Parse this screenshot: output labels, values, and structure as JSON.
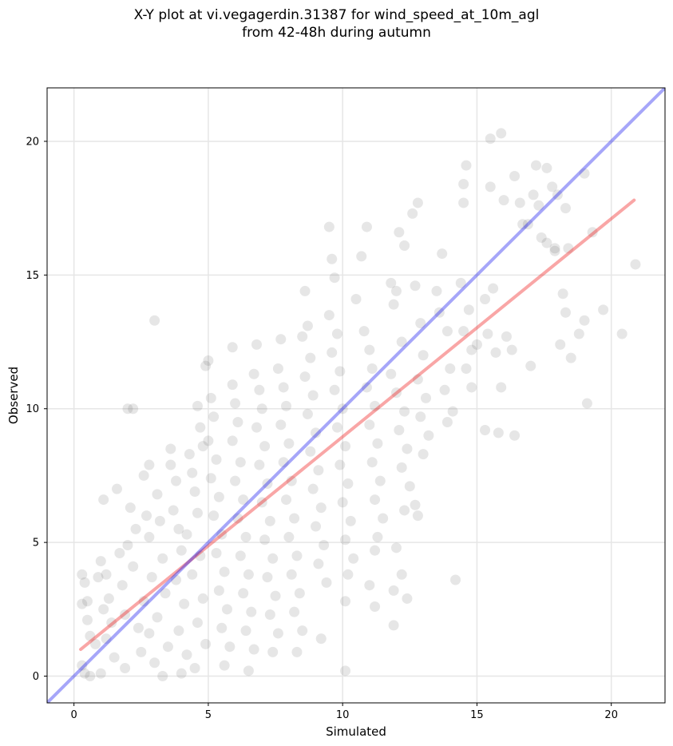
{
  "chart_data": {
    "type": "scatter",
    "title": "X-Y plot at vi.vegagerdin.31387 for wind_speed_at_10m_agl",
    "subtitle": "from 42-48h during autumn",
    "xlabel": "Simulated",
    "ylabel": "Observed",
    "xlim": [
      -1,
      22
    ],
    "ylim": [
      -1,
      22
    ],
    "xticks": [
      0,
      5,
      10,
      15,
      20
    ],
    "yticks": [
      0,
      5,
      10,
      15,
      20
    ],
    "grid": true,
    "point_color": "#555555",
    "point_alpha": 0.15,
    "identity_line": {
      "x": [
        -1,
        22
      ],
      "y": [
        -1,
        22
      ],
      "color": "#0000ee",
      "alpha": 0.35
    },
    "fit_line": {
      "x": [
        0.25,
        20.85
      ],
      "y": [
        1.0,
        17.8
      ],
      "color": "#ee0000",
      "alpha": 0.35
    },
    "series": [
      {
        "points": [
          [
            0.3,
            3.8
          ],
          [
            0.4,
            3.5
          ],
          [
            0.5,
            2.8
          ],
          [
            0.3,
            2.7
          ],
          [
            0.5,
            2.1
          ],
          [
            0.6,
            1.5
          ],
          [
            0.3,
            0.4
          ],
          [
            0.4,
            0.1
          ],
          [
            0.6,
            0.0
          ],
          [
            0.8,
            1.2
          ],
          [
            1.0,
            0.1
          ],
          [
            1.1,
            6.6
          ],
          [
            1.0,
            4.3
          ],
          [
            1.2,
            3.8
          ],
          [
            0.9,
            3.7
          ],
          [
            1.3,
            2.9
          ],
          [
            1.1,
            2.5
          ],
          [
            1.4,
            2.0
          ],
          [
            1.2,
            1.4
          ],
          [
            1.5,
            0.7
          ],
          [
            1.6,
            7.0
          ],
          [
            1.7,
            4.6
          ],
          [
            1.8,
            3.4
          ],
          [
            1.9,
            2.3
          ],
          [
            2.0,
            10.0
          ],
          [
            2.2,
            10.0
          ],
          [
            2.1,
            6.3
          ],
          [
            2.3,
            5.5
          ],
          [
            2.0,
            4.9
          ],
          [
            2.2,
            4.1
          ],
          [
            1.9,
            0.3
          ],
          [
            2.4,
            1.8
          ],
          [
            2.5,
            0.9
          ],
          [
            2.6,
            7.5
          ],
          [
            2.7,
            6.0
          ],
          [
            2.8,
            5.2
          ],
          [
            2.9,
            3.7
          ],
          [
            2.6,
            2.8
          ],
          [
            2.8,
            1.6
          ],
          [
            3.0,
            0.5
          ],
          [
            2.8,
            7.9
          ],
          [
            3.0,
            13.3
          ],
          [
            3.1,
            6.8
          ],
          [
            3.2,
            5.8
          ],
          [
            3.3,
            4.4
          ],
          [
            3.4,
            3.1
          ],
          [
            3.1,
            2.2
          ],
          [
            3.5,
            1.1
          ],
          [
            3.3,
            0.0
          ],
          [
            3.6,
            8.5
          ],
          [
            3.6,
            7.9
          ],
          [
            3.8,
            7.3
          ],
          [
            3.7,
            6.2
          ],
          [
            3.9,
            5.5
          ],
          [
            4.0,
            4.7
          ],
          [
            3.8,
            3.6
          ],
          [
            4.1,
            2.7
          ],
          [
            3.9,
            1.7
          ],
          [
            4.2,
            0.8
          ],
          [
            4.0,
            0.1
          ],
          [
            4.3,
            8.3
          ],
          [
            4.4,
            7.6
          ],
          [
            4.5,
            6.9
          ],
          [
            4.6,
            6.1
          ],
          [
            4.2,
            5.3
          ],
          [
            4.7,
            4.5
          ],
          [
            4.4,
            3.8
          ],
          [
            4.8,
            2.9
          ],
          [
            4.6,
            2.0
          ],
          [
            4.9,
            1.2
          ],
          [
            4.5,
            0.3
          ],
          [
            4.6,
            10.1
          ],
          [
            4.7,
            9.3
          ],
          [
            4.8,
            8.6
          ],
          [
            4.9,
            11.6
          ],
          [
            5.0,
            11.8
          ],
          [
            5.1,
            10.4
          ],
          [
            5.2,
            9.7
          ],
          [
            5.0,
            8.8
          ],
          [
            5.3,
            8.1
          ],
          [
            5.1,
            7.4
          ],
          [
            5.4,
            6.7
          ],
          [
            5.2,
            6.0
          ],
          [
            5.5,
            5.3
          ],
          [
            5.3,
            4.6
          ],
          [
            5.6,
            3.9
          ],
          [
            5.4,
            3.2
          ],
          [
            5.7,
            2.5
          ],
          [
            5.5,
            1.8
          ],
          [
            5.8,
            1.1
          ],
          [
            5.6,
            0.4
          ],
          [
            5.9,
            12.3
          ],
          [
            5.9,
            10.9
          ],
          [
            6.0,
            10.2
          ],
          [
            6.1,
            9.5
          ],
          [
            5.9,
            8.8
          ],
          [
            6.2,
            8.0
          ],
          [
            6.0,
            7.3
          ],
          [
            6.3,
            6.6
          ],
          [
            6.1,
            5.9
          ],
          [
            6.4,
            5.2
          ],
          [
            6.2,
            4.5
          ],
          [
            6.5,
            3.8
          ],
          [
            6.3,
            3.1
          ],
          [
            6.6,
            2.4
          ],
          [
            6.4,
            1.7
          ],
          [
            6.7,
            1.0
          ],
          [
            6.5,
            0.2
          ],
          [
            6.8,
            12.4
          ],
          [
            6.7,
            11.3
          ],
          [
            6.9,
            10.7
          ],
          [
            7.0,
            10.0
          ],
          [
            6.8,
            9.3
          ],
          [
            7.1,
            8.6
          ],
          [
            6.9,
            7.9
          ],
          [
            7.2,
            7.2
          ],
          [
            7.0,
            6.5
          ],
          [
            7.3,
            5.8
          ],
          [
            7.1,
            5.1
          ],
          [
            7.4,
            4.4
          ],
          [
            7.2,
            3.7
          ],
          [
            7.5,
            3.0
          ],
          [
            7.3,
            2.3
          ],
          [
            7.6,
            1.6
          ],
          [
            7.4,
            0.9
          ],
          [
            7.7,
            12.6
          ],
          [
            7.6,
            11.5
          ],
          [
            7.8,
            10.8
          ],
          [
            7.9,
            10.1
          ],
          [
            7.7,
            9.4
          ],
          [
            8.0,
            8.7
          ],
          [
            7.8,
            8.0
          ],
          [
            8.1,
            7.3
          ],
          [
            7.9,
            6.6
          ],
          [
            8.2,
            5.9
          ],
          [
            8.0,
            5.2
          ],
          [
            8.3,
            4.5
          ],
          [
            8.1,
            3.8
          ],
          [
            8.4,
            3.1
          ],
          [
            8.2,
            2.4
          ],
          [
            8.5,
            1.7
          ],
          [
            8.3,
            0.9
          ],
          [
            8.6,
            14.4
          ],
          [
            8.7,
            13.1
          ],
          [
            8.5,
            12.7
          ],
          [
            8.8,
            11.9
          ],
          [
            8.6,
            11.2
          ],
          [
            8.9,
            10.5
          ],
          [
            8.7,
            9.8
          ],
          [
            9.0,
            9.1
          ],
          [
            8.8,
            8.4
          ],
          [
            9.1,
            7.7
          ],
          [
            8.9,
            7.0
          ],
          [
            9.2,
            6.3
          ],
          [
            9.0,
            5.6
          ],
          [
            9.3,
            4.9
          ],
          [
            9.1,
            4.2
          ],
          [
            9.4,
            3.5
          ],
          [
            9.2,
            1.4
          ],
          [
            9.5,
            16.8
          ],
          [
            9.6,
            15.6
          ],
          [
            9.7,
            14.9
          ],
          [
            9.5,
            13.5
          ],
          [
            9.8,
            12.8
          ],
          [
            9.6,
            12.1
          ],
          [
            9.9,
            11.4
          ],
          [
            9.7,
            10.7
          ],
          [
            10.0,
            10.0
          ],
          [
            9.8,
            9.3
          ],
          [
            10.1,
            8.6
          ],
          [
            9.9,
            7.9
          ],
          [
            10.2,
            7.2
          ],
          [
            10.0,
            6.5
          ],
          [
            10.3,
            5.8
          ],
          [
            10.1,
            5.1
          ],
          [
            10.4,
            4.4
          ],
          [
            10.2,
            3.8
          ],
          [
            10.1,
            2.8
          ],
          [
            10.1,
            0.2
          ],
          [
            10.5,
            14.1
          ],
          [
            10.7,
            15.7
          ],
          [
            10.9,
            16.8
          ],
          [
            10.8,
            12.9
          ],
          [
            11.0,
            12.2
          ],
          [
            11.1,
            11.5
          ],
          [
            10.9,
            10.8
          ],
          [
            11.2,
            10.1
          ],
          [
            11.0,
            9.4
          ],
          [
            11.3,
            8.7
          ],
          [
            11.1,
            8.0
          ],
          [
            11.4,
            7.3
          ],
          [
            11.2,
            6.6
          ],
          [
            11.5,
            5.9
          ],
          [
            11.3,
            5.2
          ],
          [
            11.2,
            4.7
          ],
          [
            11.0,
            3.4
          ],
          [
            11.2,
            2.6
          ],
          [
            11.8,
            14.7
          ],
          [
            12.0,
            14.4
          ],
          [
            12.1,
            16.6
          ],
          [
            12.3,
            16.1
          ],
          [
            11.9,
            13.9
          ],
          [
            12.2,
            12.5
          ],
          [
            11.8,
            11.3
          ],
          [
            12.0,
            10.6
          ],
          [
            12.3,
            9.9
          ],
          [
            12.1,
            9.2
          ],
          [
            12.4,
            8.5
          ],
          [
            12.2,
            7.8
          ],
          [
            12.5,
            7.1
          ],
          [
            12.3,
            6.2
          ],
          [
            12.0,
            4.8
          ],
          [
            11.9,
            3.2
          ],
          [
            11.9,
            1.9
          ],
          [
            12.2,
            3.8
          ],
          [
            12.4,
            2.9
          ],
          [
            12.6,
            17.3
          ],
          [
            12.8,
            17.7
          ],
          [
            12.7,
            14.6
          ],
          [
            12.9,
            13.2
          ],
          [
            13.0,
            12.0
          ],
          [
            12.8,
            11.1
          ],
          [
            13.1,
            10.4
          ],
          [
            12.9,
            9.7
          ],
          [
            13.2,
            9.0
          ],
          [
            13.0,
            8.3
          ],
          [
            12.7,
            6.4
          ],
          [
            12.8,
            6.0
          ],
          [
            13.5,
            14.4
          ],
          [
            13.7,
            15.8
          ],
          [
            13.6,
            13.6
          ],
          [
            13.9,
            12.9
          ],
          [
            14.0,
            11.5
          ],
          [
            13.8,
            10.7
          ],
          [
            14.1,
            9.9
          ],
          [
            13.9,
            9.5
          ],
          [
            14.2,
            3.6
          ],
          [
            14.5,
            17.7
          ],
          [
            14.5,
            18.4
          ],
          [
            14.6,
            19.1
          ],
          [
            14.4,
            14.7
          ],
          [
            14.7,
            13.7
          ],
          [
            14.5,
            12.9
          ],
          [
            14.8,
            12.2
          ],
          [
            14.6,
            11.5
          ],
          [
            14.8,
            10.8
          ],
          [
            15.0,
            12.4
          ],
          [
            15.3,
            9.2
          ],
          [
            15.5,
            20.1
          ],
          [
            15.5,
            18.3
          ],
          [
            15.6,
            14.5
          ],
          [
            15.4,
            12.8
          ],
          [
            15.7,
            12.1
          ],
          [
            15.8,
            9.1
          ],
          [
            15.9,
            20.3
          ],
          [
            16.0,
            17.8
          ],
          [
            15.9,
            10.8
          ],
          [
            16.1,
            12.7
          ],
          [
            16.3,
            12.2
          ],
          [
            16.4,
            18.7
          ],
          [
            16.4,
            9.0
          ],
          [
            16.6,
            17.7
          ],
          [
            16.7,
            16.9
          ],
          [
            16.9,
            16.9
          ],
          [
            17.0,
            11.6
          ],
          [
            17.1,
            18.0
          ],
          [
            17.2,
            19.1
          ],
          [
            17.3,
            17.6
          ],
          [
            17.4,
            16.4
          ],
          [
            17.6,
            19.0
          ],
          [
            17.6,
            16.2
          ],
          [
            17.8,
            18.3
          ],
          [
            17.9,
            16.0
          ],
          [
            18.0,
            18.0
          ],
          [
            18.1,
            12.4
          ],
          [
            18.2,
            14.3
          ],
          [
            18.3,
            13.6
          ],
          [
            18.3,
            17.5
          ],
          [
            18.4,
            16.0
          ],
          [
            18.5,
            11.9
          ],
          [
            18.8,
            12.8
          ],
          [
            19.0,
            13.3
          ],
          [
            19.0,
            18.8
          ],
          [
            19.1,
            10.2
          ],
          [
            19.3,
            16.6
          ],
          [
            19.7,
            13.7
          ],
          [
            20.4,
            12.8
          ],
          [
            20.9,
            15.4
          ],
          [
            17.9,
            15.9
          ],
          [
            15.3,
            14.1
          ]
        ]
      }
    ]
  }
}
